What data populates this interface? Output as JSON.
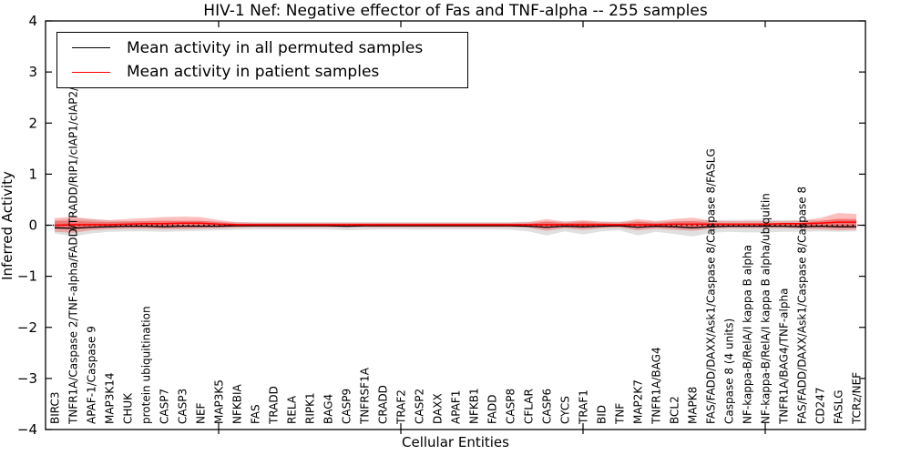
{
  "chart_data": {
    "type": "line",
    "title": "HIV-1 Nef: Negative effector of Fas and TNF-alpha -- 255 samples",
    "xlabel": "Cellular Entities",
    "ylabel": "Inferred Activity",
    "ylim": [
      -4,
      4
    ],
    "yticks": [
      4,
      3,
      2,
      1,
      0,
      -1,
      -2,
      -3,
      -4
    ],
    "grid": false,
    "legend_position": "upper left",
    "x_major_tick_indices": [
      9,
      19,
      29,
      39
    ],
    "zero_reference_line": {
      "style": "dotted",
      "color": "#000000",
      "y": 0
    },
    "categories": [
      "BIRC3",
      "TNFR1A/Caspase 2/TNF-alpha/FADD/TRADD/RIP1/cIAP1/cIAP2/TRAF2",
      "APAF-1/Caspase 9",
      "MAP3K14",
      "CHUK",
      "protein ubiquitination",
      "CASP7",
      "CASP3",
      "NEF",
      "MAP3K5",
      "NFKBIA",
      "FAS",
      "TRADD",
      "RELA",
      "RIPK1",
      "BAG4",
      "CASP9",
      "TNFRSF1A",
      "CRADD",
      "TRAF2",
      "CASP2",
      "DAXX",
      "APAF1",
      "NFKB1",
      "FADD",
      "CASP8",
      "CFLAR",
      "CASP6",
      "CYCS",
      "TRAF1",
      "BID",
      "TNF",
      "MAP2K7",
      "TNFR1A/BAG4",
      "BCL2",
      "MAPK8",
      "FAS/FADD/DAXX/Ask1/Caspase 8/Caspase 8/FASLG",
      "Caspase 8 (4 units)",
      "NF-kappa-B/RelA/I kappa B alpha",
      "NF-kappa-B/RelA/I kappa B alpha/ubiquitin",
      "TNFR1A/BAG4/TNF-alpha",
      "FAS/FADD/DAXX/Ask1/Caspase 8/Caspase 8",
      "CD247",
      "FASLG",
      "TCRz/NEF"
    ],
    "series": [
      {
        "name": "Mean activity in all permuted samples",
        "color": "#000000",
        "line_style": "solid",
        "values": [
          -0.05,
          -0.06,
          -0.04,
          -0.03,
          -0.02,
          -0.02,
          -0.03,
          -0.02,
          -0.02,
          -0.02,
          -0.01,
          -0.01,
          -0.01,
          -0.01,
          -0.01,
          -0.01,
          -0.02,
          -0.01,
          -0.01,
          -0.01,
          -0.01,
          -0.01,
          -0.01,
          -0.01,
          -0.01,
          -0.01,
          -0.02,
          -0.04,
          -0.02,
          -0.03,
          -0.02,
          -0.01,
          -0.04,
          -0.02,
          -0.03,
          -0.05,
          -0.03,
          -0.02,
          -0.02,
          -0.02,
          -0.02,
          -0.03,
          -0.02,
          -0.03,
          -0.03
        ]
      },
      {
        "name": "Mean activity in patient samples",
        "color": "#ff0000",
        "line_style": "solid",
        "values": [
          0.0,
          0.01,
          0.01,
          0.01,
          0.02,
          0.03,
          0.03,
          0.04,
          0.04,
          0.02,
          0.01,
          0.01,
          0.01,
          0.01,
          0.01,
          0.01,
          0.01,
          0.01,
          0.01,
          0.01,
          0.01,
          0.01,
          0.01,
          0.01,
          0.01,
          0.01,
          0.01,
          0.01,
          0.01,
          0.01,
          0.01,
          0.01,
          0.01,
          0.01,
          0.02,
          0.02,
          0.02,
          0.02,
          0.02,
          0.02,
          0.03,
          0.03,
          0.04,
          0.06,
          0.06
        ]
      }
    ],
    "bands": [
      {
        "name": "permuted-samples-range",
        "color": "#999999",
        "opacity": 0.3,
        "upper": [
          0.1,
          0.13,
          0.12,
          0.09,
          0.08,
          0.08,
          0.09,
          0.08,
          0.08,
          0.07,
          0.06,
          0.06,
          0.06,
          0.06,
          0.06,
          0.06,
          0.06,
          0.06,
          0.06,
          0.06,
          0.06,
          0.06,
          0.06,
          0.06,
          0.06,
          0.06,
          0.07,
          0.08,
          0.07,
          0.08,
          0.07,
          0.07,
          0.08,
          0.07,
          0.08,
          0.09,
          0.1,
          0.1,
          0.11,
          0.11,
          0.1,
          0.1,
          0.1,
          0.11,
          0.11
        ],
        "lower": [
          -0.16,
          -0.22,
          -0.16,
          -0.13,
          -0.12,
          -0.12,
          -0.13,
          -0.12,
          -0.11,
          -0.1,
          -0.09,
          -0.08,
          -0.08,
          -0.09,
          -0.08,
          -0.08,
          -0.1,
          -0.09,
          -0.08,
          -0.08,
          -0.09,
          -0.08,
          -0.08,
          -0.08,
          -0.08,
          -0.09,
          -0.12,
          -0.2,
          -0.12,
          -0.18,
          -0.12,
          -0.1,
          -0.2,
          -0.13,
          -0.17,
          -0.22,
          -0.15,
          -0.13,
          -0.14,
          -0.14,
          -0.13,
          -0.13,
          -0.12,
          -0.13,
          -0.12
        ]
      },
      {
        "name": "patient-samples-range-outer",
        "color": "#ff0000",
        "opacity": 0.25,
        "upper": [
          0.14,
          0.17,
          0.12,
          0.1,
          0.12,
          0.14,
          0.16,
          0.17,
          0.16,
          0.1,
          0.06,
          0.05,
          0.05,
          0.05,
          0.05,
          0.05,
          0.05,
          0.05,
          0.05,
          0.05,
          0.05,
          0.05,
          0.05,
          0.05,
          0.05,
          0.05,
          0.06,
          0.12,
          0.07,
          0.1,
          0.07,
          0.06,
          0.12,
          0.08,
          0.12,
          0.15,
          0.09,
          0.08,
          0.08,
          0.08,
          0.08,
          0.09,
          0.14,
          0.24,
          0.22
        ],
        "lower": [
          -0.13,
          -0.15,
          -0.1,
          -0.08,
          -0.07,
          -0.07,
          -0.08,
          -0.08,
          -0.07,
          -0.06,
          -0.05,
          -0.04,
          -0.04,
          -0.04,
          -0.04,
          -0.04,
          -0.04,
          -0.04,
          -0.04,
          -0.04,
          -0.04,
          -0.04,
          -0.04,
          -0.04,
          -0.04,
          -0.04,
          -0.05,
          -0.11,
          -0.06,
          -0.09,
          -0.06,
          -0.05,
          -0.1,
          -0.07,
          -0.09,
          -0.11,
          -0.07,
          -0.06,
          -0.06,
          -0.06,
          -0.06,
          -0.07,
          -0.08,
          -0.1,
          -0.09
        ]
      },
      {
        "name": "patient-samples-range-inner",
        "color": "#ff0000",
        "opacity": 0.3,
        "upper": [
          0.08,
          0.09,
          0.07,
          0.06,
          0.07,
          0.08,
          0.09,
          0.09,
          0.09,
          0.06,
          0.03,
          0.03,
          0.03,
          0.03,
          0.03,
          0.03,
          0.03,
          0.03,
          0.03,
          0.03,
          0.03,
          0.03,
          0.03,
          0.03,
          0.03,
          0.03,
          0.03,
          0.07,
          0.04,
          0.06,
          0.04,
          0.03,
          0.07,
          0.04,
          0.07,
          0.08,
          0.05,
          0.04,
          0.04,
          0.04,
          0.04,
          0.05,
          0.08,
          0.13,
          0.12
        ],
        "lower": [
          -0.07,
          -0.08,
          -0.06,
          -0.04,
          -0.04,
          -0.04,
          -0.04,
          -0.04,
          -0.04,
          -0.03,
          -0.03,
          -0.02,
          -0.02,
          -0.02,
          -0.02,
          -0.02,
          -0.02,
          -0.02,
          -0.02,
          -0.02,
          -0.02,
          -0.02,
          -0.02,
          -0.02,
          -0.02,
          -0.02,
          -0.03,
          -0.06,
          -0.03,
          -0.05,
          -0.03,
          -0.03,
          -0.05,
          -0.04,
          -0.05,
          -0.06,
          -0.04,
          -0.03,
          -0.03,
          -0.03,
          -0.03,
          -0.04,
          -0.04,
          -0.05,
          -0.05
        ]
      }
    ]
  }
}
